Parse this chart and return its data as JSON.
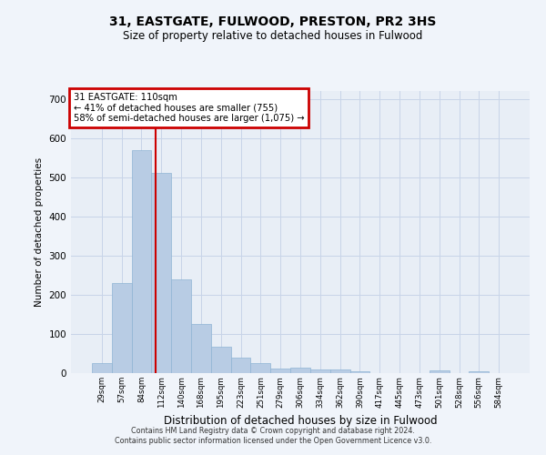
{
  "title1": "31, EASTGATE, FULWOOD, PRESTON, PR2 3HS",
  "title2": "Size of property relative to detached houses in Fulwood",
  "xlabel": "Distribution of detached houses by size in Fulwood",
  "ylabel": "Number of detached properties",
  "categories": [
    "29sqm",
    "57sqm",
    "84sqm",
    "112sqm",
    "140sqm",
    "168sqm",
    "195sqm",
    "223sqm",
    "251sqm",
    "279sqm",
    "306sqm",
    "334sqm",
    "362sqm",
    "390sqm",
    "417sqm",
    "445sqm",
    "473sqm",
    "501sqm",
    "528sqm",
    "556sqm",
    "584sqm"
  ],
  "values": [
    25,
    230,
    570,
    510,
    240,
    125,
    68,
    40,
    25,
    12,
    15,
    10,
    10,
    5,
    0,
    0,
    0,
    6,
    0,
    5,
    0
  ],
  "bar_color": "#b8cce4",
  "bar_edge_color": "#8fb4d4",
  "annotation_line1": "31 EASTGATE: 110sqm",
  "annotation_line2": "← 41% of detached houses are smaller (755)",
  "annotation_line3": "58% of semi-detached houses are larger (1,075) →",
  "annotation_box_color": "#cc0000",
  "annotation_fill": "#ffffff",
  "vline_x": 2.72,
  "vline_color": "#cc0000",
  "ylim": [
    0,
    720
  ],
  "yticks": [
    0,
    100,
    200,
    300,
    400,
    500,
    600,
    700
  ],
  "grid_color": "#c8d4e8",
  "bg_color": "#e8eef6",
  "fig_bg_color": "#f0f4fa",
  "footer1": "Contains HM Land Registry data © Crown copyright and database right 2024.",
  "footer2": "Contains public sector information licensed under the Open Government Licence v3.0."
}
